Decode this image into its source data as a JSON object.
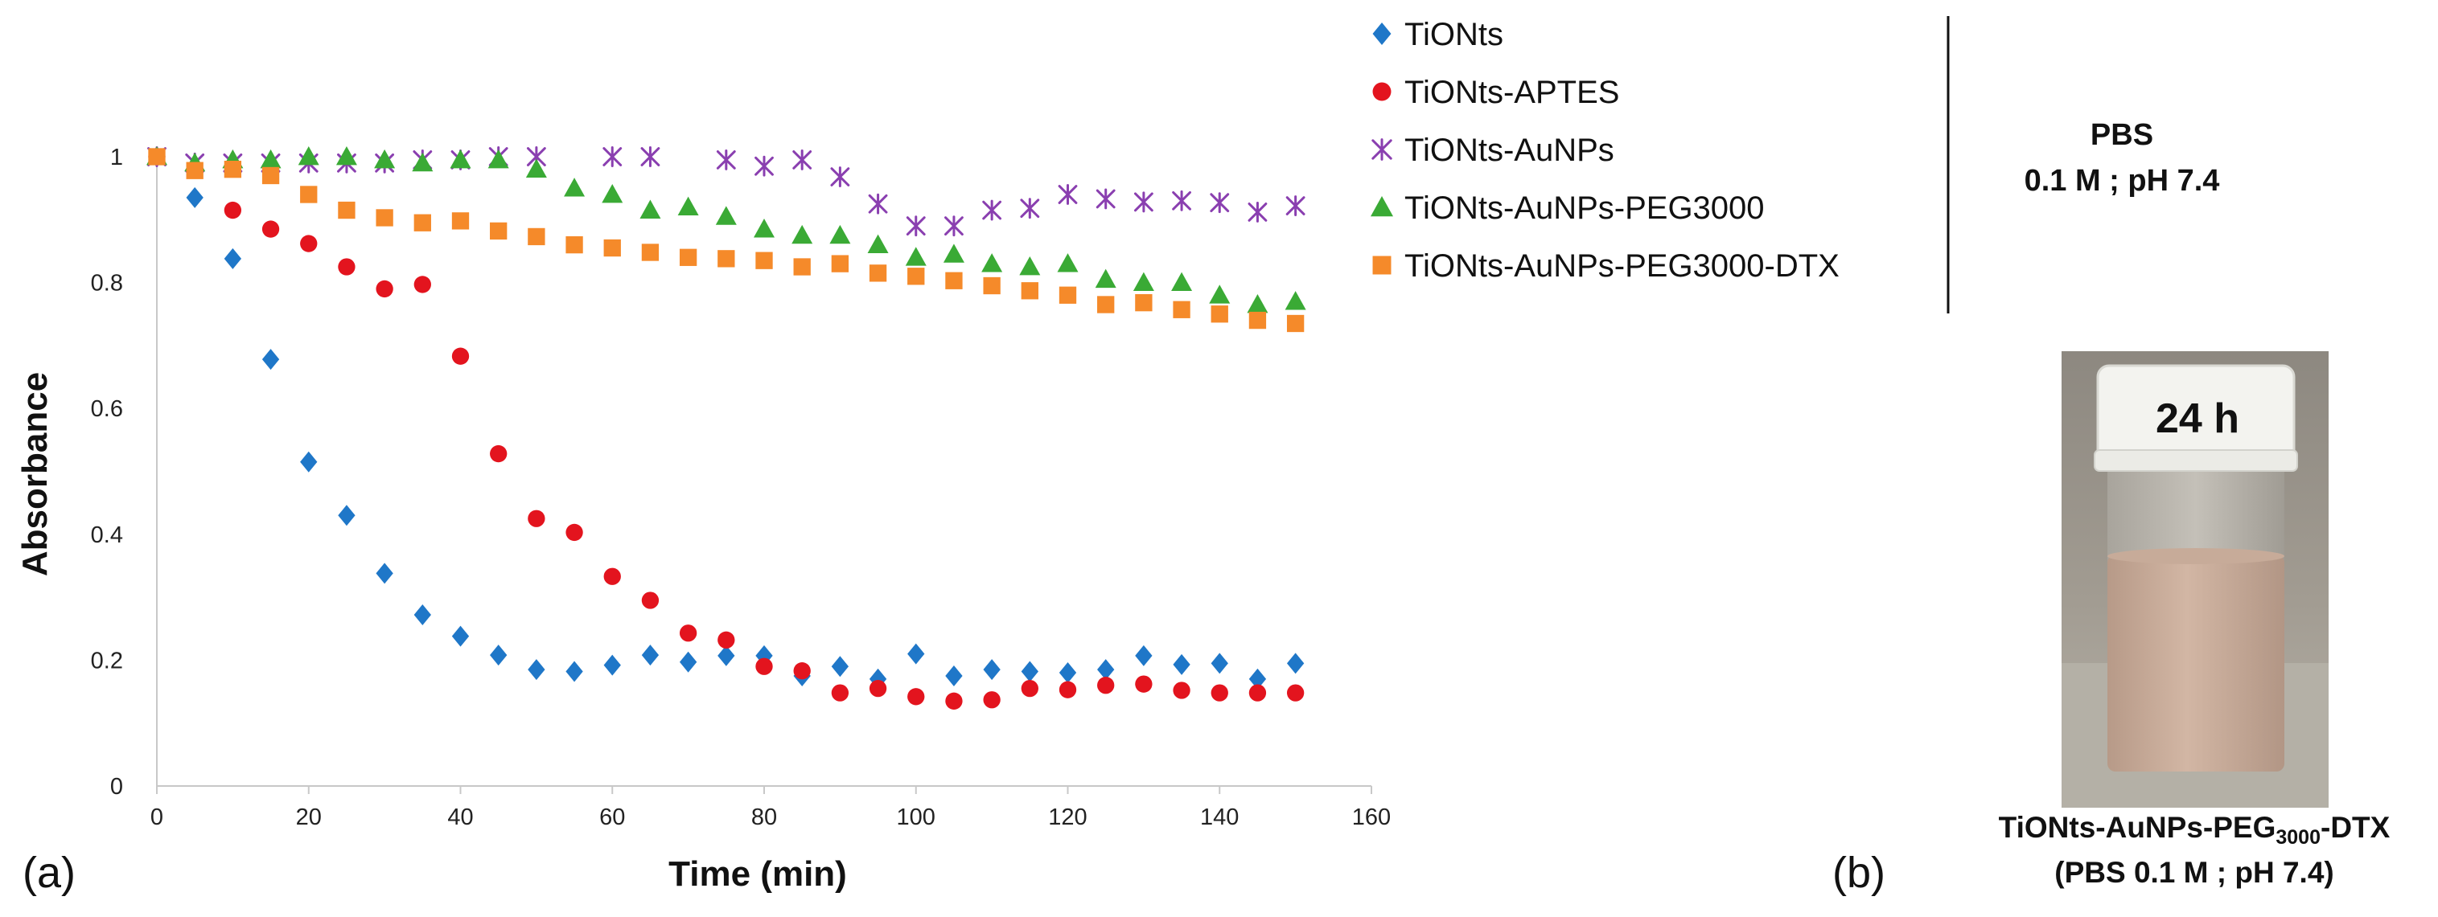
{
  "chart_data": {
    "type": "scatter",
    "title": "",
    "xlabel": "Time (min)",
    "ylabel": "Absorbance",
    "xlim": [
      0,
      160
    ],
    "ylim": [
      0,
      1
    ],
    "x_ticks": [
      0,
      20,
      40,
      60,
      80,
      100,
      120,
      140,
      160
    ],
    "y_ticks": [
      0,
      0.2,
      0.4,
      0.6,
      0.8,
      1
    ],
    "x_tick_labels": [
      "0",
      "20",
      "40",
      "60",
      "80",
      "100",
      "120",
      "140",
      "160"
    ],
    "y_tick_labels": [
      "0",
      "0.2",
      "0.4",
      "0.6",
      "0.8",
      "1"
    ],
    "grid": false,
    "legend_position": "top-right",
    "series": [
      {
        "name": "TiONts",
        "marker": "diamond",
        "color": "#1f77c8",
        "x": [
          0,
          5,
          10,
          15,
          20,
          25,
          30,
          35,
          40,
          45,
          50,
          55,
          60,
          65,
          70,
          75,
          80,
          85,
          90,
          95,
          100,
          105,
          110,
          115,
          120,
          125,
          130,
          135,
          140,
          145,
          150
        ],
        "values": [
          1.0,
          0.935,
          0.838,
          0.678,
          0.515,
          0.43,
          0.338,
          0.272,
          0.238,
          0.208,
          0.185,
          0.182,
          0.192,
          0.208,
          0.197,
          0.207,
          0.207,
          0.175,
          0.19,
          0.17,
          0.21,
          0.175,
          0.185,
          0.182,
          0.18,
          0.185,
          0.207,
          0.193,
          0.195,
          0.17,
          0.195
        ]
      },
      {
        "name": "TiONts-APTES",
        "marker": "circle",
        "color": "#e3141e",
        "x": [
          0,
          10,
          15,
          20,
          25,
          30,
          35,
          40,
          45,
          50,
          55,
          60,
          65,
          70,
          75,
          80,
          85,
          90,
          95,
          100,
          105,
          110,
          115,
          120,
          125,
          130,
          135,
          140,
          145,
          150
        ],
        "values": [
          1.0,
          0.915,
          0.885,
          0.862,
          0.825,
          0.79,
          0.797,
          0.683,
          0.528,
          0.425,
          0.403,
          0.333,
          0.295,
          0.243,
          0.232,
          0.19,
          0.183,
          0.148,
          0.155,
          0.142,
          0.135,
          0.137,
          0.155,
          0.153,
          0.16,
          0.162,
          0.152,
          0.148,
          0.148,
          0.148
        ]
      },
      {
        "name": "TiONts-AuNPs",
        "marker": "star",
        "color": "#8a3fb0",
        "x": [
          0,
          5,
          10,
          15,
          20,
          25,
          30,
          35,
          40,
          45,
          50,
          60,
          65,
          75,
          80,
          85,
          90,
          95,
          100,
          105,
          110,
          115,
          120,
          125,
          130,
          135,
          140,
          145,
          150
        ],
        "values": [
          1.0,
          0.99,
          0.99,
          0.99,
          0.99,
          0.99,
          0.99,
          0.995,
          0.995,
          1.0,
          1.0,
          1.0,
          1.0,
          0.995,
          0.985,
          0.995,
          0.968,
          0.925,
          0.89,
          0.89,
          0.915,
          0.918,
          0.94,
          0.933,
          0.928,
          0.93,
          0.927,
          0.912,
          0.922
        ]
      },
      {
        "name": "TiONts-AuNPs-PEG3000",
        "marker": "triangle",
        "color": "#3aaa35",
        "x": [
          0,
          5,
          10,
          15,
          20,
          25,
          30,
          35,
          40,
          45,
          50,
          55,
          60,
          65,
          70,
          75,
          80,
          85,
          90,
          95,
          100,
          105,
          110,
          115,
          120,
          125,
          130,
          135,
          140,
          145,
          150
        ],
        "values": [
          1.0,
          0.99,
          0.995,
          0.995,
          1.0,
          1.0,
          0.995,
          0.99,
          0.995,
          0.995,
          0.98,
          0.95,
          0.94,
          0.915,
          0.92,
          0.905,
          0.885,
          0.875,
          0.875,
          0.86,
          0.84,
          0.845,
          0.83,
          0.825,
          0.83,
          0.805,
          0.8,
          0.8,
          0.78,
          0.765,
          0.77
        ]
      },
      {
        "name": "TiONts-AuNPs-PEG3000-DTX",
        "marker": "square",
        "color": "#f58a2a",
        "x": [
          0,
          5,
          10,
          15,
          20,
          25,
          30,
          35,
          40,
          45,
          50,
          55,
          60,
          65,
          70,
          75,
          80,
          85,
          90,
          95,
          100,
          105,
          110,
          115,
          120,
          125,
          130,
          135,
          140,
          145,
          150
        ],
        "values": [
          1.0,
          0.978,
          0.98,
          0.97,
          0.94,
          0.915,
          0.903,
          0.895,
          0.898,
          0.882,
          0.873,
          0.86,
          0.855,
          0.848,
          0.84,
          0.838,
          0.835,
          0.825,
          0.83,
          0.815,
          0.81,
          0.803,
          0.795,
          0.787,
          0.78,
          0.765,
          0.768,
          0.757,
          0.75,
          0.74,
          0.735
        ]
      }
    ]
  },
  "panel_labels": {
    "a": "(a)",
    "b": "(b)"
  },
  "conditions": {
    "line1": "PBS",
    "line2": "0.1 M ; pH 7.4"
  },
  "photo": {
    "time_label": "24 h",
    "caption_main": "TiONts-AuNPs-PEG",
    "caption_sub": "3000",
    "caption_suffix": "-DTX",
    "caption_line2": "(PBS 0.1 M ; pH 7.4)"
  },
  "colors": {
    "axis": "#c8c8c8",
    "photo_background": "#9a9488",
    "vial_liquid": "#c8aa98",
    "cap": "#f4f4f0"
  }
}
